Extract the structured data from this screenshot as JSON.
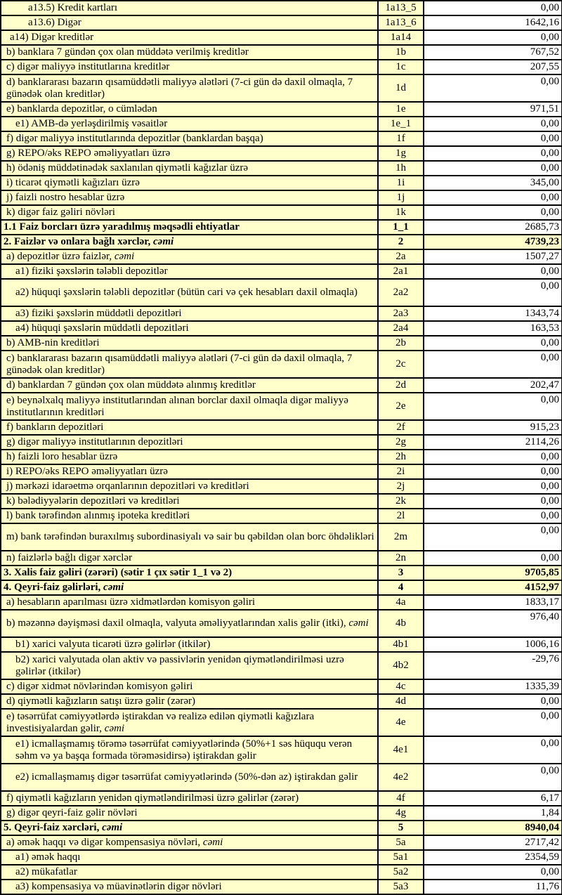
{
  "colors": {
    "row_bg": "#FFFFCC",
    "value_bg": "#FFFFFF",
    "border": "#000000",
    "text": "#000000"
  },
  "table": {
    "columns": {
      "label": "",
      "code": "",
      "value": ""
    },
    "rows": [
      {
        "label": "a13.5) Kredit kartları",
        "code": "1a13_5",
        "value": "0,00",
        "level": 4,
        "style": "",
        "tall": false
      },
      {
        "label": "a13.6) Digər",
        "code": "1a13_6",
        "value": "1642,16",
        "level": 4,
        "style": "",
        "tall": false
      },
      {
        "label": "a14) Digər kreditlər",
        "code": "1a14",
        "value": "0,00",
        "level": 2,
        "style": "",
        "tall": false
      },
      {
        "label": "b) banklara 7 gündən çox olan müddətə verilmiş kreditlər",
        "code": "1b",
        "value": "767,52",
        "level": 1,
        "style": "",
        "tall": false
      },
      {
        "label": "c) digər maliyyə institutlarına kreditlər",
        "code": "1c",
        "value": "207,55",
        "level": 1,
        "style": "",
        "tall": false
      },
      {
        "label": "d) banklararası bazarın qısamüddətli maliyyə alətləri (7-ci gün də daxil olmaqla, 7 günədək olan kreditlər)",
        "code": "1d",
        "value": "0,00",
        "level": 1,
        "style": "",
        "tall": true
      },
      {
        "label": "e) banklarda depozitlər, o cümlədən",
        "code": "1e",
        "value": "971,51",
        "level": 1,
        "style": "",
        "tall": false
      },
      {
        "label": "e1) AMB-də yerləşdirilmiş vəsaitlər",
        "code": "1e_1",
        "value": "0,00",
        "level": 3,
        "style": "",
        "tall": false
      },
      {
        "label": "f) digər maliyyə institutlarında depozitlər (banklardan başqa)",
        "code": "1f",
        "value": "0,00",
        "level": 1,
        "style": "",
        "tall": false
      },
      {
        "label": "g) REPO/əks REPO əməliyyatları üzrə",
        "code": "1g",
        "value": "0,00",
        "level": 1,
        "style": "",
        "tall": false
      },
      {
        "label": "h) ödəniş müddətinədək saxlanılan qiymətli kağızlar üzrə",
        "code": "1h",
        "value": "0,00",
        "level": 1,
        "style": "",
        "tall": false
      },
      {
        "label": "i) ticarət qiymətli kağızları üzrə",
        "code": "1i",
        "value": "345,00",
        "level": 1,
        "style": "",
        "tall": false
      },
      {
        "label": "j) faizli nostro hesablar üzrə",
        "code": "1j",
        "value": "0,00",
        "level": 1,
        "style": "",
        "tall": false
      },
      {
        "label": "k) digər faiz gəliri növləri",
        "code": "1k",
        "value": "0,00",
        "level": 1,
        "style": "",
        "tall": false
      },
      {
        "label": "1.1 Faiz borcları üzrə yaradılmış məqsədli ehtiyatlar",
        "code": "1_1",
        "value": "2685,73",
        "level": 0,
        "style": "head",
        "tall": false
      },
      {
        "label": "2. Faizlər və onlara bağlı xərclər, ",
        "em": "cəmi",
        "code": "2",
        "value": "4739,23",
        "level": 0,
        "style": "total",
        "tall": false
      },
      {
        "label": "a) depozitlər üzrə faizlər, ",
        "em": "cəmi",
        "code": "2a",
        "value": "1507,27",
        "level": 1,
        "style": "",
        "tall": false
      },
      {
        "label": "a1) fiziki şəxslərin tələbli depozitlər",
        "code": "2a1",
        "value": "0,00",
        "level": 3,
        "style": "",
        "tall": false
      },
      {
        "label": "a2) hüquqi şəxslərin tələbli depozitlər (bütün cari və çek hesabları daxil olmaqla)",
        "code": "2a2",
        "value": "0,00",
        "level": 3,
        "style": "",
        "tall": true
      },
      {
        "label": "a3) fiziki şəxslərin müddətli depozitləri",
        "code": "2a3",
        "value": "1343,74",
        "level": 3,
        "style": "",
        "tall": false
      },
      {
        "label": "a4) hüquqi şəxslərin müddətli depozitləri",
        "code": "2a4",
        "value": "163,53",
        "level": 3,
        "style": "",
        "tall": false
      },
      {
        "label": "b) AMB-nin kreditləri",
        "code": "2b",
        "value": "0,00",
        "level": 1,
        "style": "",
        "tall": false
      },
      {
        "label": "c) banklararası bazarın qısamüddətli maliyyə alətləri (7-ci gün də daxil olmaqla, 7 günədək olan kreditlər)",
        "code": "2c",
        "value": "0,00",
        "level": 1,
        "style": "",
        "tall": true
      },
      {
        "label": "d) banklardan 7 gündən çox olan müddətə alınmış kreditlər",
        "code": "2d",
        "value": "202,47",
        "level": 1,
        "style": "",
        "tall": false
      },
      {
        "label": "e) beynəlxalq maliyyə institutlarından alınan borclar daxil olmaqla digər maliyyə institutlarının kreditləri",
        "code": "2e",
        "value": "0,00",
        "level": 1,
        "style": "",
        "tall": true
      },
      {
        "label": "f) bankların depozitləri",
        "code": "2f",
        "value": "915,23",
        "level": 1,
        "style": "",
        "tall": false
      },
      {
        "label": "g) digər maliyyə institutlarının depozitləri",
        "code": "2g",
        "value": "2114,26",
        "level": 1,
        "style": "",
        "tall": false
      },
      {
        "label": "h) faizli loro hesablar üzrə",
        "code": "2h",
        "value": "0,00",
        "level": 1,
        "style": "",
        "tall": false
      },
      {
        "label": "i) REPO/əks REPO əməliyyatları üzrə",
        "code": "2i",
        "value": "0,00",
        "level": 1,
        "style": "",
        "tall": false
      },
      {
        "label": "j) mərkəzi idarəetmə orqanlarının depozitləri və kreditləri",
        "code": "2j",
        "value": "0,00",
        "level": 1,
        "style": "",
        "tall": false
      },
      {
        "label": "k) bələdiyyələrin depozitləri və kreditləri",
        "code": "2k",
        "value": "0,00",
        "level": 1,
        "style": "",
        "tall": false
      },
      {
        "label": "l) bank tərəfindən alınmış ipoteka kreditləri",
        "code": "2l",
        "value": "0,00",
        "level": 1,
        "style": "",
        "tall": false
      },
      {
        "label": "m) bank tərəfindən buraxılmış subordinasiyalı və sair bu qəbildən olan borc öhdəlikləri",
        "code": "2m",
        "value": "0,00",
        "level": 1,
        "style": "",
        "tall": true
      },
      {
        "label": "n) faizlərlə bağlı digər xərclər",
        "code": "2n",
        "value": "0,00",
        "level": 1,
        "style": "",
        "tall": false
      },
      {
        "label": "3. Xalis faiz gəliri (zərəri) (sətir 1 çıx sətir 1_1 və 2)",
        "code": "3",
        "value": "9705,85",
        "level": 0,
        "style": "total",
        "tall": false
      },
      {
        "label": "4. Qeyri-faiz gəlirləri, ",
        "em": "cəmi",
        "code": "4",
        "value": "4152,97",
        "level": 0,
        "style": "total",
        "tall": false
      },
      {
        "label": "a) hesabların aparılması üzrə xidmətlərdən komisyon gəliri",
        "code": "4a",
        "value": "1833,17",
        "level": 1,
        "style": "",
        "tall": false
      },
      {
        "label": "b) məzənnə dəyişməsi daxil olmaqla, valyuta əməliyyatlarından xalis gəlir (itki), ",
        "em": "cəmi",
        "code": "4b",
        "value": "976,40",
        "level": 1,
        "style": "",
        "tall": true
      },
      {
        "label": "b1) xarici valyuta ticarəti üzrə gəlirlər (itkilər)",
        "code": "4b1",
        "value": "1006,16",
        "level": 3,
        "style": "",
        "tall": false
      },
      {
        "label": "b2) xarici valyutada olan aktiv və passivlərin yenidən qiymətləndirilməsi uzrə gəlirlər (itkilər)",
        "code": "4b2",
        "value": "-29,76",
        "level": 3,
        "style": "",
        "tall": true
      },
      {
        "label": "c) digər xidmət növlərindən komisyon gəliri",
        "code": "4c",
        "value": "1335,39",
        "level": 1,
        "style": "",
        "tall": false
      },
      {
        "label": "d) qiymətli kağızların satışı üzrə gəlir (zərər)",
        "code": "4d",
        "value": "0,00",
        "level": 1,
        "style": "",
        "tall": false
      },
      {
        "label": "e) təsərrüfat cəmiyyətlərdə iştirakdan və realizə edilən qiymətli kağızlara investisiyalardan gəlir, ",
        "em": "cəmi",
        "code": "4e",
        "value": "0,00",
        "level": 1,
        "style": "",
        "tall": true
      },
      {
        "label": "e1) icmallaşmamış törəmə təsərrüfat cəmiyyətlərində (50%+1 səs hüququ verən səhm və ya başqa formada törəməsidirsə) iştirakdan gəlir",
        "code": "4e1",
        "value": "0,00",
        "level": 3,
        "style": "",
        "tall": true
      },
      {
        "label": "e2) icmallaşmamış digər təsərrüfat cəmiyyətlərində (50%-dən az) iştirakdan gəlir",
        "code": "4e2",
        "value": "0,00",
        "level": 3,
        "style": "",
        "tall": true
      },
      {
        "label": "f) qiymətli kağızların yenidən qiymətləndirilməsi üzrə gəlirlər (zərər)",
        "code": "4f",
        "value": "6,17",
        "level": 1,
        "style": "",
        "tall": false
      },
      {
        "label": "g) digər qeyri-faiz gəlir növləri",
        "code": "4g",
        "value": "1,84",
        "level": 1,
        "style": "",
        "tall": false
      },
      {
        "label": "5. Qeyri-faiz xərcləri, ",
        "em": "cəmi",
        "code": "5",
        "value": "8940,04",
        "level": 0,
        "style": "total",
        "tall": false
      },
      {
        "label": "a) əmək haqqı və digər kompensasiya növləri, ",
        "em": "cəmi",
        "code": "5a",
        "value": "2717,42",
        "level": 1,
        "style": "",
        "tall": false
      },
      {
        "label": "a1) əmək haqqı",
        "code": "5a1",
        "value": "2354,59",
        "level": 3,
        "style": "",
        "tall": false
      },
      {
        "label": "a2) mükafatlar",
        "code": "5a2",
        "value": "0,00",
        "level": 3,
        "style": "",
        "tall": false
      },
      {
        "label": "a3) kompensasiya və müavinətlərin digər növləri",
        "code": "5a3",
        "value": "11,76",
        "level": 3,
        "style": "",
        "tall": false
      }
    ]
  }
}
